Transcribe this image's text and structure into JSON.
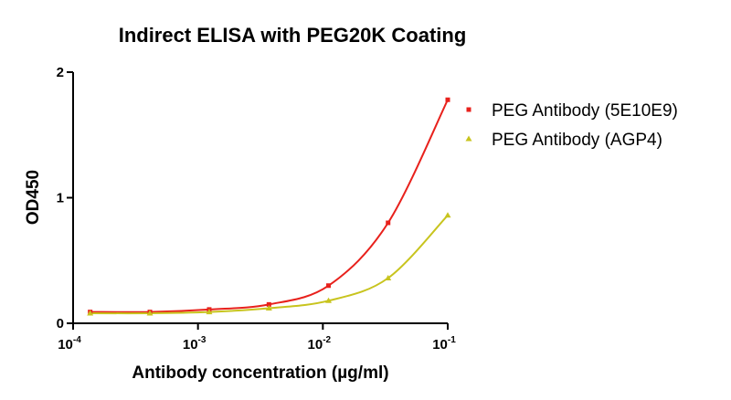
{
  "chart_data": {
    "type": "scatter",
    "title": "Indirect ELISA with PEG20K Coating",
    "xlabel": "Antibody concentration (µg/ml)",
    "ylabel": "OD450",
    "x_scale": "log",
    "xlim": [
      0.0001,
      0.1
    ],
    "ylim": [
      0,
      2
    ],
    "x_ticks": [
      {
        "base": "10",
        "exp": "-4",
        "value": 0.0001
      },
      {
        "base": "10",
        "exp": "-3",
        "value": 0.001
      },
      {
        "base": "10",
        "exp": "-2",
        "value": 0.01
      },
      {
        "base": "10",
        "exp": "-1",
        "value": 0.1
      }
    ],
    "y_ticks": [
      {
        "label": "0",
        "value": 0
      },
      {
        "label": "1",
        "value": 1
      },
      {
        "label": "2",
        "value": 2
      }
    ],
    "legend_position": "right",
    "grid": false,
    "series": [
      {
        "name": "PEG Antibody (5E10E9)",
        "color": "#e8211c",
        "marker": "square",
        "x": [
          0.000137,
          0.000412,
          0.00123,
          0.0037,
          0.0111,
          0.0333,
          0.1
        ],
        "y": [
          0.09,
          0.09,
          0.11,
          0.15,
          0.3,
          0.8,
          1.78
        ],
        "fit_curve": true
      },
      {
        "name": "PEG Antibody (AGP4)",
        "color": "#c8c41e",
        "marker": "triangle",
        "x": [
          0.000137,
          0.000412,
          0.00123,
          0.0037,
          0.0111,
          0.0333,
          0.1
        ],
        "y": [
          0.08,
          0.08,
          0.09,
          0.12,
          0.18,
          0.36,
          0.86
        ],
        "fit_curve": true
      }
    ]
  }
}
